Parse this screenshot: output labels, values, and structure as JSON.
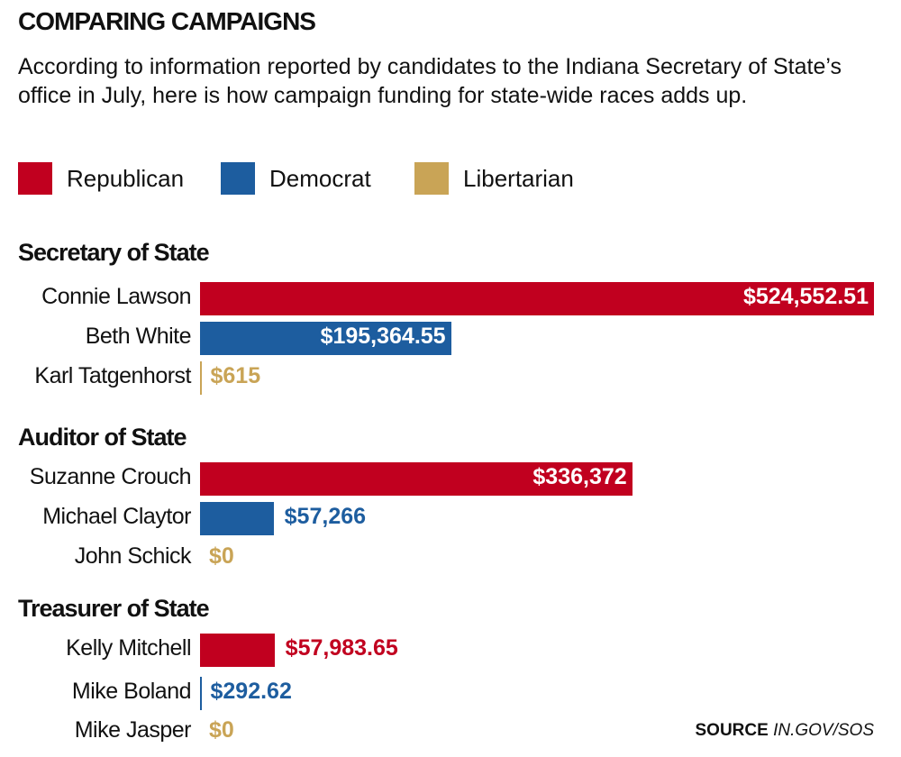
{
  "title": "COMPARING CAMPAIGNS",
  "subtitle": "According to information reported by candidates to the Indiana Secretary of State’s office in July, here is how campaign funding for state-wide races adds up.",
  "source_label": "SOURCE",
  "source_value": "IN.GOV/SOS",
  "colors": {
    "Republican": "#c1001f",
    "Democrat": "#1d5d9f",
    "Libertarian": "#c9a456"
  },
  "chart_data": {
    "type": "bar",
    "orientation": "horizontal",
    "title": "COMPARING CAMPAIGNS",
    "legend": [
      "Republican",
      "Democrat",
      "Libertarian"
    ],
    "legend_placement": "top-left",
    "xlim": [
      0,
      524552.51
    ],
    "groups": [
      {
        "name": "Secretary of State",
        "bars": [
          {
            "candidate": "Connie Lawson",
            "party": "Republican",
            "value": 524552.51,
            "label": "$524,552.51"
          },
          {
            "candidate": "Beth White",
            "party": "Democrat",
            "value": 195364.55,
            "label": "$195,364.55"
          },
          {
            "candidate": "Karl Tatgenhorst",
            "party": "Libertarian",
            "value": 615,
            "label": "$615"
          }
        ]
      },
      {
        "name": "Auditor of State",
        "bars": [
          {
            "candidate": "Suzanne Crouch",
            "party": "Republican",
            "value": 336372,
            "label": "$336,372"
          },
          {
            "candidate": "Michael Claytor",
            "party": "Democrat",
            "value": 57266,
            "label": "$57,266"
          },
          {
            "candidate": "John Schick",
            "party": "Libertarian",
            "value": 0,
            "label": "$0"
          }
        ]
      },
      {
        "name": "Treasurer of State",
        "bars": [
          {
            "candidate": "Kelly Mitchell",
            "party": "Republican",
            "value": 57983.65,
            "label": "$57,983.65"
          },
          {
            "candidate": "Mike Boland",
            "party": "Democrat",
            "value": 292.62,
            "label": "$292.62"
          },
          {
            "candidate": "Mike Jasper",
            "party": "Libertarian",
            "value": 0,
            "label": "$0"
          }
        ]
      }
    ]
  }
}
